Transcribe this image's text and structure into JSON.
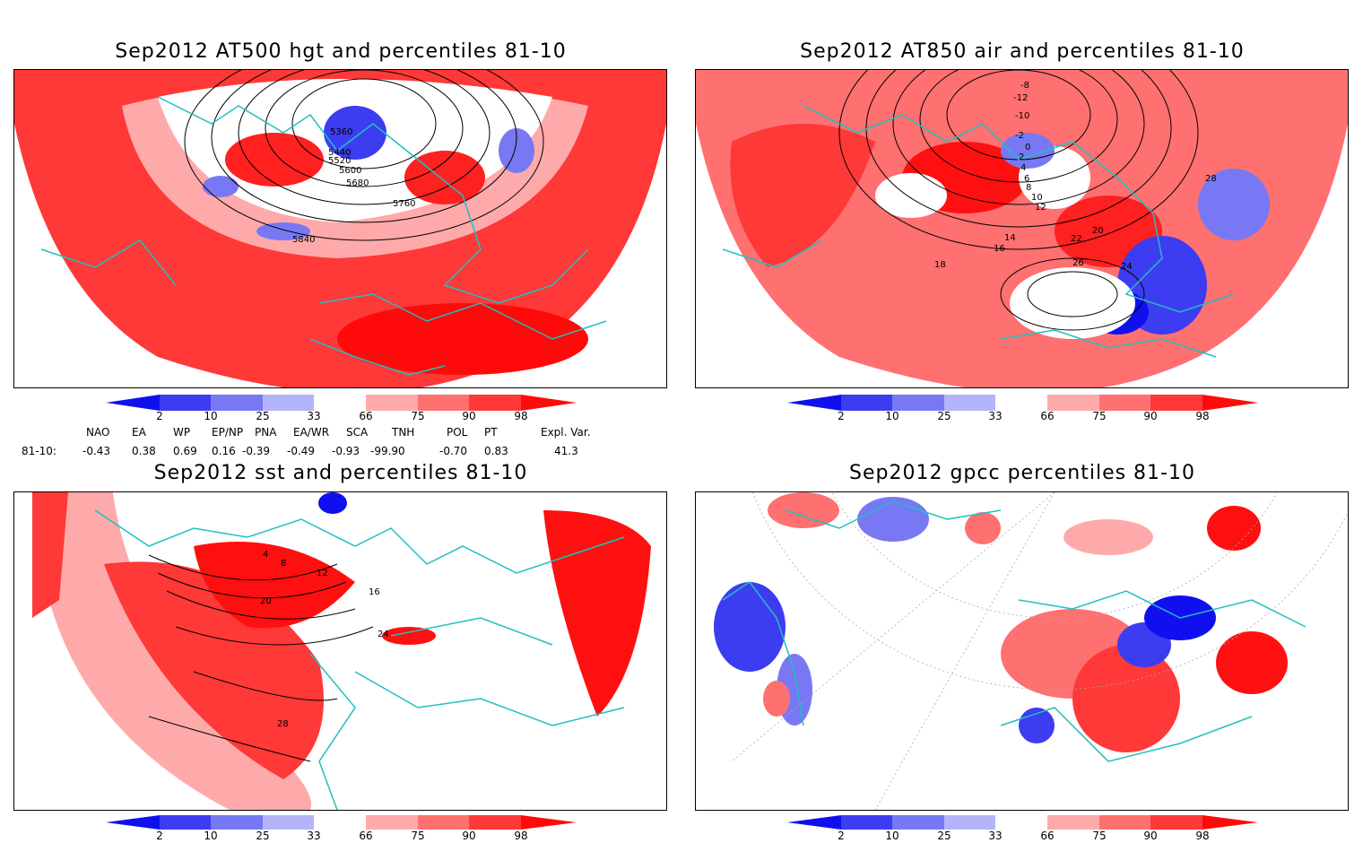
{
  "panels": [
    {
      "id": "hgt",
      "title": "Sep2012 AT500 hgt and percentiles 81-10",
      "contour_labels": [
        "5360",
        "5440",
        "5520",
        "5600",
        "5680",
        "5760",
        "5840"
      ]
    },
    {
      "id": "air",
      "title": "Sep2012 AT850 air and percentiles 81-10",
      "contour_labels": [
        "-8",
        "-12",
        "-10",
        "-2",
        "0",
        "2",
        "4",
        "6",
        "8",
        "10",
        "12",
        "14",
        "16",
        "18",
        "20",
        "22",
        "24",
        "26",
        "28"
      ]
    },
    {
      "id": "sst",
      "title": "Sep2012 sst and percentiles 81-10",
      "contour_labels": [
        "4",
        "8",
        "12",
        "16",
        "20",
        "24",
        "28"
      ]
    },
    {
      "id": "gpcc",
      "title": "Sep2012 gpcc percentiles 81-10",
      "contour_labels": []
    }
  ],
  "colorbar": {
    "labels": [
      "2",
      "10",
      "25",
      "33",
      "66",
      "75",
      "90",
      "98"
    ],
    "colors": {
      "c2": "#1010ee",
      "c10": "#3c3cf0",
      "c25": "#7878f4",
      "c33": "#b4b4fa",
      "c66": "#ffaaaa",
      "c75": "#ff7070",
      "c90": "#ff3838",
      "c98": "#ff0a0a"
    }
  },
  "indices": {
    "headers": [
      "NAO",
      "EA",
      "WP",
      "EP/NP",
      "PNA",
      "EA/WR",
      "SCA",
      "TNH",
      "POL",
      "PT",
      "Expl. Var."
    ],
    "row_label": "81-10:",
    "values": [
      "-0.43",
      "0.38",
      "0.69",
      "0.16",
      "-0.39",
      "-0.49",
      "-0.93",
      "-99.90",
      "-0.70",
      "0.83",
      "41.3"
    ]
  },
  "colors": {
    "coast": "#20c0c0",
    "contour": "#000000"
  }
}
